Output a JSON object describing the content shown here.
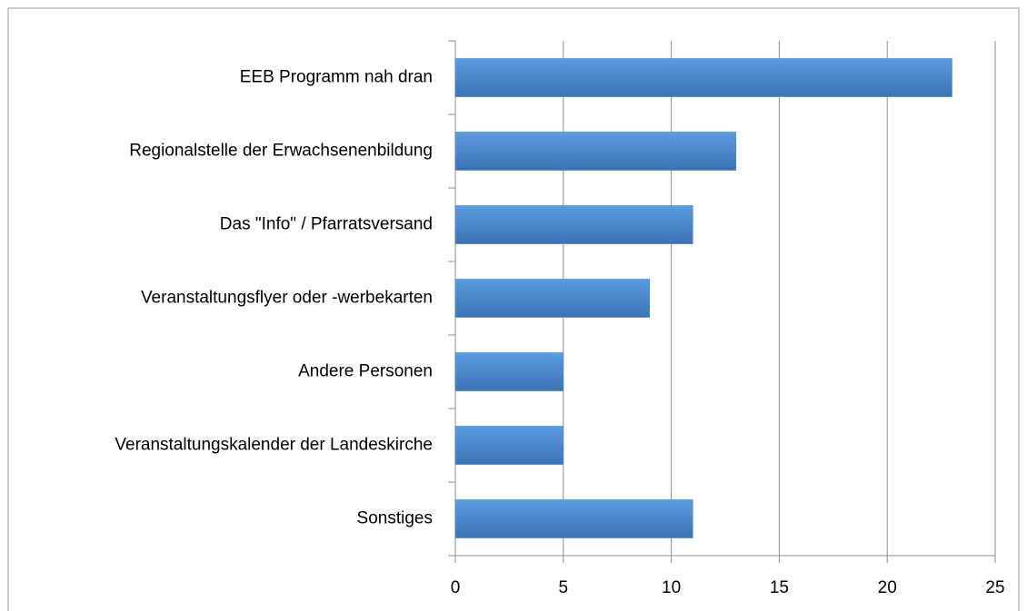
{
  "chart_data": {
    "type": "bar",
    "orientation": "horizontal",
    "categories": [
      "EEB Programm nah dran",
      "Regionalstelle der Erwachsenenbildung",
      "Das \"Info\" / Pfarratsversand",
      "Veranstaltungsflyer oder -werbekarten",
      "Andere Personen",
      "Veranstaltungskalender der Landeskirche",
      "Sonstiges"
    ],
    "values": [
      23,
      13,
      11,
      9,
      5,
      5,
      11
    ],
    "color": "#4a86c8",
    "xlim": [
      0,
      25
    ],
    "xticks": [
      0,
      5,
      10,
      15,
      20,
      25
    ],
    "grid": true
  }
}
